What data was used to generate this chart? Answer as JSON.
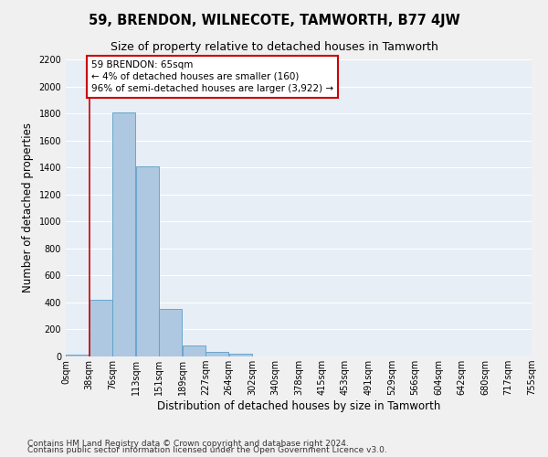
{
  "title": "59, BRENDON, WILNECOTE, TAMWORTH, B77 4JW",
  "subtitle": "Size of property relative to detached houses in Tamworth",
  "xlabel": "Distribution of detached houses by size in Tamworth",
  "ylabel": "Number of detached properties",
  "bin_labels": [
    "0sqm",
    "38sqm",
    "76sqm",
    "113sqm",
    "151sqm",
    "189sqm",
    "227sqm",
    "264sqm",
    "302sqm",
    "340sqm",
    "378sqm",
    "415sqm",
    "453sqm",
    "491sqm",
    "529sqm",
    "566sqm",
    "604sqm",
    "642sqm",
    "680sqm",
    "717sqm",
    "755sqm"
  ],
  "bar_values": [
    15,
    420,
    1810,
    1410,
    350,
    80,
    35,
    18,
    0,
    0,
    0,
    0,
    0,
    0,
    0,
    0,
    0,
    0,
    0,
    0
  ],
  "bar_color": "#adc8e0",
  "bar_edge_color": "#5a9ec8",
  "background_color": "#e8eef5",
  "grid_color": "#ffffff",
  "annotation_box_text": "59 BRENDON: 65sqm\n← 4% of detached houses are smaller (160)\n96% of semi-detached houses are larger (3,922) →",
  "annotation_box_color": "#ffffff",
  "annotation_box_edge_color": "#cc0000",
  "annotation_line_color": "#cc0000",
  "ylim": [
    0,
    2200
  ],
  "yticks": [
    0,
    200,
    400,
    600,
    800,
    1000,
    1200,
    1400,
    1600,
    1800,
    2000,
    2200
  ],
  "footnote1": "Contains HM Land Registry data © Crown copyright and database right 2024.",
  "footnote2": "Contains public sector information licensed under the Open Government Licence v3.0.",
  "title_fontsize": 10.5,
  "subtitle_fontsize": 9,
  "axis_label_fontsize": 8.5,
  "tick_fontsize": 7,
  "annotation_fontsize": 7.5,
  "footnote_fontsize": 6.5
}
